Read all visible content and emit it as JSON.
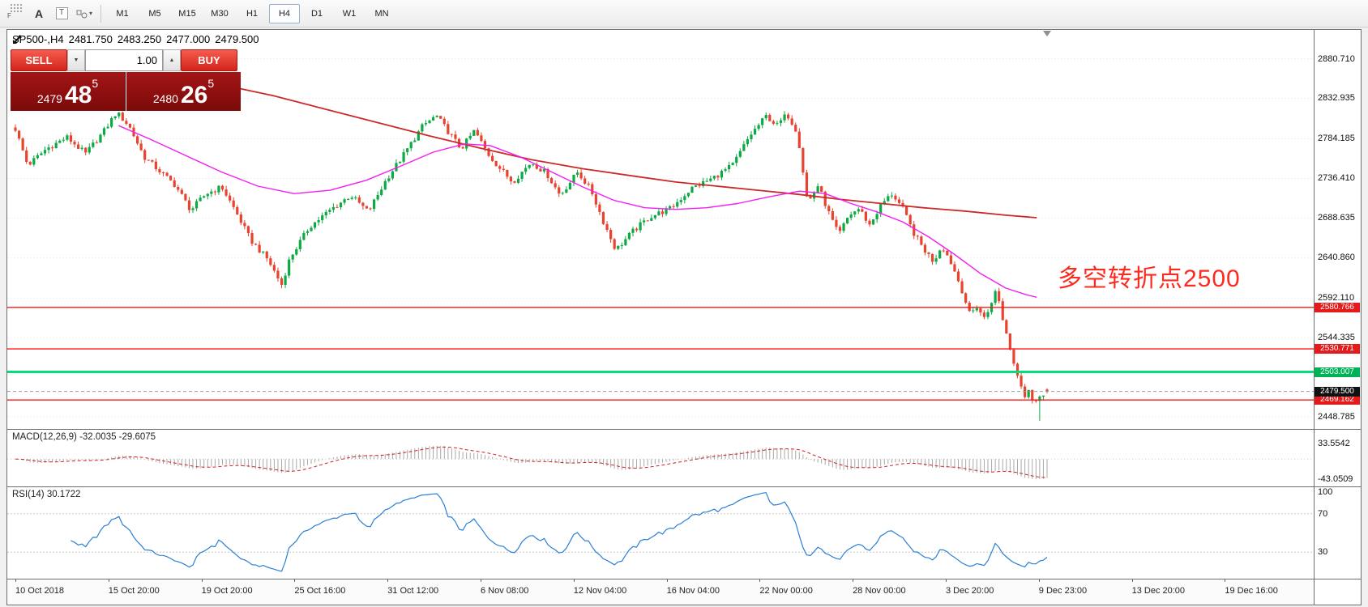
{
  "toolbar": {
    "f_label": "F",
    "a_label": "A",
    "t_label": "T",
    "timeframes": [
      {
        "label": "M1",
        "active": false
      },
      {
        "label": "M5",
        "active": false
      },
      {
        "label": "M15",
        "active": false
      },
      {
        "label": "M30",
        "active": false
      },
      {
        "label": "H1",
        "active": false
      },
      {
        "label": "H4",
        "active": true
      },
      {
        "label": "D1",
        "active": false
      },
      {
        "label": "W1",
        "active": false
      },
      {
        "label": "MN",
        "active": false
      }
    ]
  },
  "icons": {
    "caret_down": "▼",
    "caret_up": "▲",
    "small_caret": "▾"
  },
  "chart": {
    "title_symbol": "SP500-,H4",
    "open": "2481.750",
    "high": "2483.250",
    "low": "2477.000",
    "close": "2479.500",
    "annotation": "多空转折点2500"
  },
  "trade_panel": {
    "sell_label": "SELL",
    "buy_label": "BUY",
    "volume": "1.00",
    "sell_price": {
      "small": "2479",
      "big": "48",
      "sup": "5"
    },
    "buy_price": {
      "small": "2480",
      "big": "26",
      "sup": "5"
    }
  },
  "macd": {
    "label": "MACD(12,26,9) -32.0035 -29.6075",
    "axis_max": "33.5542",
    "axis_min": "-43.0509"
  },
  "rsi": {
    "label": "RSI(14) 30.1722",
    "levels": [
      "100",
      "70",
      "30"
    ]
  },
  "time_axis": [
    "10 Oct 2018",
    "15 Oct 20:00",
    "19 Oct 20:00",
    "25 Oct 16:00",
    "31 Oct 12:00",
    "6 Nov 08:00",
    "12 Nov 04:00",
    "16 Nov 04:00",
    "22 Nov 00:00",
    "28 Nov 00:00",
    "3 Dec 20:00",
    "9 Dec 23:00",
    "13 Dec 20:00",
    "19 Dec 16:00"
  ],
  "chart_data": {
    "type": "candlestick",
    "symbol": "SP500-",
    "period": "H4",
    "bars_approx": 280,
    "last": {
      "open": 2481.75,
      "high": 2483.25,
      "low": 2477.0,
      "close": 2479.5
    },
    "visible_range": {
      "max": 2915.4,
      "min": 2434.2
    },
    "price_axis": [
      2880.71,
      2832.935,
      2784.185,
      2736.41,
      2688.635,
      2640.86,
      2592.11,
      2544.335,
      2448.785
    ],
    "levels": [
      {
        "value": 2580.766,
        "label": "2580.766",
        "line_color": "#ff1414",
        "line_width": 1.4,
        "line_style": "solid",
        "tag_color": "#e41b1b"
      },
      {
        "value": 2530.771,
        "label": "2530.771",
        "line_color": "#ff1414",
        "line_width": 1.4,
        "line_style": "solid",
        "tag_color": "#e41b1b"
      },
      {
        "value": 2469.162,
        "label": "2469.162",
        "line_color": "#ff1414",
        "line_width": 1.4,
        "line_style": "solid",
        "tag_color": "#e41b1b"
      },
      {
        "value": 2503.007,
        "label": "2503.007",
        "line_color": "#00df7a",
        "line_width": 3,
        "line_style": "solid",
        "tag_color": "#00b257"
      },
      {
        "value": 2479.5,
        "label": "2479.500",
        "line_color": "#9a9a9a",
        "line_width": 1,
        "line_style": "dash",
        "tag_color": "#111111"
      }
    ],
    "colors": {
      "up": "#0ca944",
      "down": "#e8432f",
      "ma_red": "#cc2a2a",
      "ma_magenta": "#f21ef2",
      "macd_bar": "#a8a8a8",
      "macd_signal": "#d02020",
      "rsi_line": "#2a7fd4"
    },
    "price_path": [
      [
        0.0,
        2796
      ],
      [
        0.012,
        2752
      ],
      [
        0.03,
        2772
      ],
      [
        0.05,
        2786
      ],
      [
        0.068,
        2766
      ],
      [
        0.085,
        2792
      ],
      [
        0.098,
        2816
      ],
      [
        0.11,
        2800
      ],
      [
        0.125,
        2762
      ],
      [
        0.14,
        2745
      ],
      [
        0.155,
        2728
      ],
      [
        0.17,
        2698
      ],
      [
        0.185,
        2718
      ],
      [
        0.2,
        2726
      ],
      [
        0.212,
        2700
      ],
      [
        0.228,
        2662
      ],
      [
        0.245,
        2638
      ],
      [
        0.258,
        2608
      ],
      [
        0.266,
        2640
      ],
      [
        0.285,
        2678
      ],
      [
        0.305,
        2698
      ],
      [
        0.325,
        2716
      ],
      [
        0.342,
        2696
      ],
      [
        0.36,
        2736
      ],
      [
        0.378,
        2768
      ],
      [
        0.395,
        2800
      ],
      [
        0.408,
        2812
      ],
      [
        0.42,
        2792
      ],
      [
        0.432,
        2772
      ],
      [
        0.445,
        2794
      ],
      [
        0.458,
        2766
      ],
      [
        0.47,
        2748
      ],
      [
        0.482,
        2732
      ],
      [
        0.5,
        2756
      ],
      [
        0.515,
        2742
      ],
      [
        0.528,
        2716
      ],
      [
        0.545,
        2744
      ],
      [
        0.558,
        2722
      ],
      [
        0.57,
        2684
      ],
      [
        0.582,
        2650
      ],
      [
        0.598,
        2672
      ],
      [
        0.615,
        2690
      ],
      [
        0.635,
        2700
      ],
      [
        0.655,
        2724
      ],
      [
        0.675,
        2736
      ],
      [
        0.695,
        2752
      ],
      [
        0.712,
        2788
      ],
      [
        0.728,
        2812
      ],
      [
        0.738,
        2800
      ],
      [
        0.748,
        2814
      ],
      [
        0.758,
        2792
      ],
      [
        0.768,
        2706
      ],
      [
        0.778,
        2728
      ],
      [
        0.788,
        2696
      ],
      [
        0.798,
        2668
      ],
      [
        0.808,
        2692
      ],
      [
        0.818,
        2700
      ],
      [
        0.828,
        2680
      ],
      [
        0.84,
        2706
      ],
      [
        0.85,
        2718
      ],
      [
        0.86,
        2700
      ],
      [
        0.87,
        2672
      ],
      [
        0.88,
        2652
      ],
      [
        0.89,
        2636
      ],
      [
        0.898,
        2656
      ],
      [
        0.908,
        2632
      ],
      [
        0.918,
        2600
      ],
      [
        0.925,
        2572
      ],
      [
        0.932,
        2582
      ],
      [
        0.94,
        2566
      ],
      [
        0.946,
        2588
      ],
      [
        0.951,
        2602
      ],
      [
        0.956,
        2572
      ],
      [
        0.962,
        2542
      ],
      [
        0.968,
        2512
      ],
      [
        0.974,
        2492
      ],
      [
        0.979,
        2472
      ],
      [
        0.983,
        2486
      ],
      [
        0.987,
        2460
      ],
      [
        0.993,
        2476
      ],
      [
        1.0,
        2479.5
      ]
    ],
    "ma_red": [
      [
        0.19,
        2852
      ],
      [
        0.25,
        2836
      ],
      [
        0.3,
        2820
      ],
      [
        0.35,
        2804
      ],
      [
        0.4,
        2788
      ],
      [
        0.45,
        2773
      ],
      [
        0.5,
        2759
      ],
      [
        0.55,
        2748
      ],
      [
        0.6,
        2739
      ],
      [
        0.64,
        2732
      ],
      [
        0.68,
        2727
      ],
      [
        0.72,
        2722
      ],
      [
        0.76,
        2717
      ],
      [
        0.8,
        2711
      ],
      [
        0.84,
        2706
      ],
      [
        0.88,
        2701
      ],
      [
        0.92,
        2697
      ],
      [
        0.96,
        2692
      ],
      [
        0.99,
        2689
      ]
    ],
    "ma_magenta": [
      [
        0.1,
        2800
      ],
      [
        0.13,
        2784
      ],
      [
        0.165,
        2764
      ],
      [
        0.2,
        2744
      ],
      [
        0.235,
        2727
      ],
      [
        0.27,
        2718
      ],
      [
        0.305,
        2722
      ],
      [
        0.34,
        2734
      ],
      [
        0.375,
        2752
      ],
      [
        0.405,
        2768
      ],
      [
        0.435,
        2778
      ],
      [
        0.46,
        2776
      ],
      [
        0.49,
        2762
      ],
      [
        0.52,
        2744
      ],
      [
        0.55,
        2726
      ],
      [
        0.58,
        2710
      ],
      [
        0.61,
        2701
      ],
      [
        0.64,
        2699
      ],
      [
        0.67,
        2701
      ],
      [
        0.7,
        2706
      ],
      [
        0.73,
        2714
      ],
      [
        0.76,
        2721
      ],
      [
        0.785,
        2718
      ],
      [
        0.81,
        2706
      ],
      [
        0.835,
        2696
      ],
      [
        0.86,
        2684
      ],
      [
        0.885,
        2666
      ],
      [
        0.91,
        2645
      ],
      [
        0.935,
        2622
      ],
      [
        0.96,
        2604
      ],
      [
        0.98,
        2596
      ],
      [
        0.99,
        2593
      ]
    ],
    "indicators": {
      "macd": {
        "params": "12,26,9",
        "main": -32.0035,
        "signal": -29.6075,
        "axis": [
          -43.0509,
          33.5542
        ]
      },
      "rsi": {
        "params": "14",
        "value": 30.1722,
        "levels": [
          30,
          70
        ],
        "range": [
          0,
          100
        ]
      }
    }
  }
}
